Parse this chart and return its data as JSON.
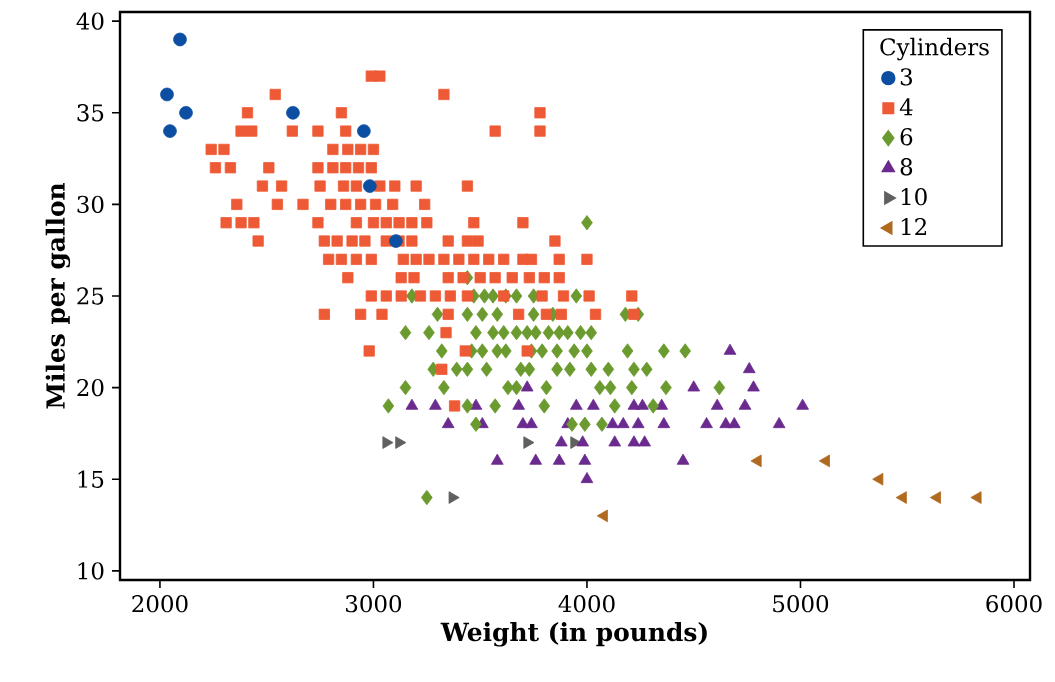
{
  "chart_data": {
    "type": "scatter",
    "xlabel": "Weight (in pounds)",
    "ylabel": "Miles per gallon",
    "legend_title": "Cylinders",
    "legend": "top right",
    "grid": false,
    "xlim": [
      1813,
      6075
    ],
    "ylim": [
      9.5,
      40.5
    ],
    "xticks": [
      2000,
      3000,
      4000,
      5000,
      6000
    ],
    "yticks": [
      10,
      15,
      20,
      25,
      30,
      35,
      40
    ],
    "series": [
      {
        "name": "3",
        "color": "#0b4ea2",
        "marker": "circle",
        "x": [
          2094,
          2033,
          2122,
          2047,
          2623,
          2955,
          2983,
          3105
        ],
        "values": [
          39,
          36,
          35,
          34,
          35,
          34,
          31,
          28
        ]
      },
      {
        "name": "4",
        "color": "#ee5a35",
        "marker": "square",
        "x": [
          2990,
          3030,
          2540,
          3330,
          2410,
          2850,
          3780,
          2380,
          2430,
          2620,
          2740,
          2870,
          3570,
          3780,
          2240,
          2300,
          2810,
          2880,
          2940,
          3000,
          2260,
          2330,
          2510,
          2740,
          2810,
          2870,
          2930,
          2990,
          2480,
          2570,
          2750,
          2860,
          2920,
          3030,
          3100,
          3200,
          3440,
          2360,
          2550,
          2670,
          2800,
          2870,
          2940,
          3010,
          3090,
          3240,
          2310,
          2380,
          2440,
          2740,
          2920,
          3000,
          3060,
          3120,
          3180,
          3250,
          3470,
          3700,
          2460,
          2770,
          2830,
          2900,
          2960,
          3060,
          3120,
          3180,
          3350,
          3440,
          3490,
          3850,
          2790,
          2850,
          2920,
          2990,
          3140,
          3200,
          3260,
          3330,
          3400,
          3470,
          3540,
          3610,
          3700,
          3740,
          3870,
          4000,
          2880,
          3130,
          3190,
          3350,
          3420,
          3500,
          3570,
          3650,
          3730,
          3800,
          3870,
          2990,
          3060,
          3130,
          3220,
          3290,
          3360,
          3440,
          3610,
          3790,
          3890,
          4010,
          4210,
          2770,
          2940,
          3040,
          3350,
          3680,
          3810,
          3880,
          4040,
          4220,
          3340,
          2980,
          3430,
          3720,
          3320,
          3380
        ],
        "values": [
          37,
          37,
          36,
          36,
          35,
          35,
          35,
          34,
          34,
          34,
          34,
          34,
          34,
          34,
          33,
          33,
          33,
          33,
          33,
          33,
          32,
          32,
          32,
          32,
          32,
          32,
          32,
          32,
          31,
          31,
          31,
          31,
          31,
          31,
          31,
          31,
          31,
          30,
          30,
          30,
          30,
          30,
          30,
          30,
          30,
          30,
          29,
          29,
          29,
          29,
          29,
          29,
          29,
          29,
          29,
          29,
          29,
          29,
          28,
          28,
          28,
          28,
          28,
          28,
          28,
          28,
          28,
          28,
          28,
          28,
          27,
          27,
          27,
          27,
          27,
          27,
          27,
          27,
          27,
          27,
          27,
          27,
          27,
          27,
          27,
          27,
          26,
          26,
          26,
          26,
          26,
          26,
          26,
          26,
          26,
          26,
          26,
          25,
          25,
          25,
          25,
          25,
          25,
          25,
          25,
          25,
          25,
          25,
          25,
          24,
          24,
          24,
          24,
          24,
          24,
          24,
          24,
          24,
          23,
          22,
          22,
          22,
          21,
          19
        ]
      },
      {
        "name": "6",
        "color": "#6b9a2e",
        "marker": "diamond",
        "x": [
          4000,
          3440,
          3180,
          3470,
          3520,
          3560,
          3620,
          3670,
          3750,
          3950,
          3300,
          3440,
          3510,
          3580,
          3750,
          3840,
          4180,
          4240,
          3150,
          3260,
          3480,
          3560,
          3610,
          3670,
          3720,
          3760,
          3820,
          3870,
          3910,
          3970,
          4020,
          3320,
          3460,
          3510,
          3580,
          3620,
          3740,
          3790,
          3860,
          3940,
          4000,
          4190,
          4360,
          4460,
          3280,
          3390,
          3440,
          3530,
          3690,
          3730,
          3860,
          3920,
          4020,
          4100,
          4220,
          4280,
          3150,
          3330,
          3630,
          3670,
          3810,
          4060,
          4110,
          4210,
          4370,
          4620,
          3070,
          3440,
          3570,
          3800,
          4130,
          4310,
          3480,
          3930,
          3990,
          4070,
          3250
        ],
        "values": [
          29,
          26,
          25,
          25,
          25,
          25,
          25,
          25,
          25,
          25,
          24,
          24,
          24,
          24,
          24,
          24,
          24,
          24,
          23,
          23,
          23,
          23,
          23,
          23,
          23,
          23,
          23,
          23,
          23,
          23,
          23,
          22,
          22,
          22,
          22,
          22,
          22,
          22,
          22,
          22,
          22,
          22,
          22,
          22,
          21,
          21,
          21,
          21,
          21,
          21,
          21,
          21,
          21,
          21,
          21,
          21,
          20,
          20,
          20,
          20,
          20,
          20,
          20,
          20,
          20,
          20,
          19,
          19,
          19,
          19,
          19,
          19,
          18,
          18,
          18,
          18,
          14
        ]
      },
      {
        "name": "8",
        "color": "#6a2a8e",
        "marker": "triangle",
        "x": [
          4670,
          4760,
          3720,
          4500,
          4780,
          3180,
          3290,
          3480,
          3680,
          3950,
          4030,
          4220,
          4260,
          4350,
          4610,
          4740,
          5010,
          3350,
          3510,
          3700,
          3740,
          3910,
          4120,
          4170,
          4240,
          4360,
          4560,
          4650,
          4690,
          4900,
          3880,
          3980,
          4130,
          4220,
          4270,
          3580,
          3760,
          3870,
          3990,
          4450,
          4000
        ],
        "values": [
          22,
          21,
          20,
          20,
          20,
          19,
          19,
          19,
          19,
          19,
          19,
          19,
          19,
          19,
          19,
          19,
          19,
          18,
          18,
          18,
          18,
          18,
          18,
          18,
          18,
          18,
          18,
          18,
          18,
          18,
          17,
          17,
          17,
          17,
          17,
          16,
          16,
          16,
          16,
          16,
          15
        ]
      },
      {
        "name": "10",
        "color": "#606060",
        "marker": "triangle-right",
        "x": [
          3060,
          3120,
          3720,
          3940,
          3370
        ],
        "values": [
          17,
          17,
          17,
          17,
          14
        ]
      },
      {
        "name": "12",
        "color": "#b06a20",
        "marker": "triangle-left",
        "x": [
          4080,
          4800,
          5120,
          5370,
          5480,
          5640,
          5830
        ],
        "values": [
          13,
          16,
          16,
          15,
          14,
          14,
          14
        ]
      }
    ]
  }
}
